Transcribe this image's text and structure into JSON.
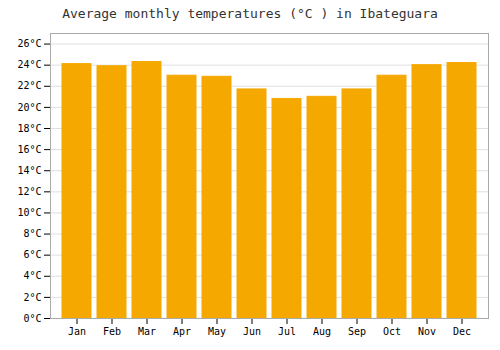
{
  "chart_data": {
    "type": "bar",
    "title": "Average monthly temperatures (°C ) in Ibateguara",
    "categories": [
      "Jan",
      "Feb",
      "Mar",
      "Apr",
      "May",
      "Jun",
      "Jul",
      "Aug",
      "Sep",
      "Oct",
      "Nov",
      "Dec"
    ],
    "values": [
      24.1,
      23.9,
      24.3,
      23.0,
      22.9,
      21.7,
      20.8,
      21.0,
      21.7,
      23.0,
      24.0,
      24.2
    ],
    "color": "#F5A800",
    "ylim": [
      0,
      27
    ],
    "yticks": [
      {
        "value": 0,
        "label": "0°C"
      },
      {
        "value": 2,
        "label": "2°C"
      },
      {
        "value": 4,
        "label": "4°C"
      },
      {
        "value": 6,
        "label": "6°C"
      },
      {
        "value": 8,
        "label": "8°C"
      },
      {
        "value": 10,
        "label": "10°C"
      },
      {
        "value": 12,
        "label": "12°C"
      },
      {
        "value": 14,
        "label": "14°C"
      },
      {
        "value": 16,
        "label": "16°C"
      },
      {
        "value": 18,
        "label": "18°C"
      },
      {
        "value": 20,
        "label": "20°C"
      },
      {
        "value": 22,
        "label": "22°C"
      },
      {
        "value": 24,
        "label": "24°C"
      },
      {
        "value": 26,
        "label": "26°C"
      }
    ],
    "grid": true
  }
}
